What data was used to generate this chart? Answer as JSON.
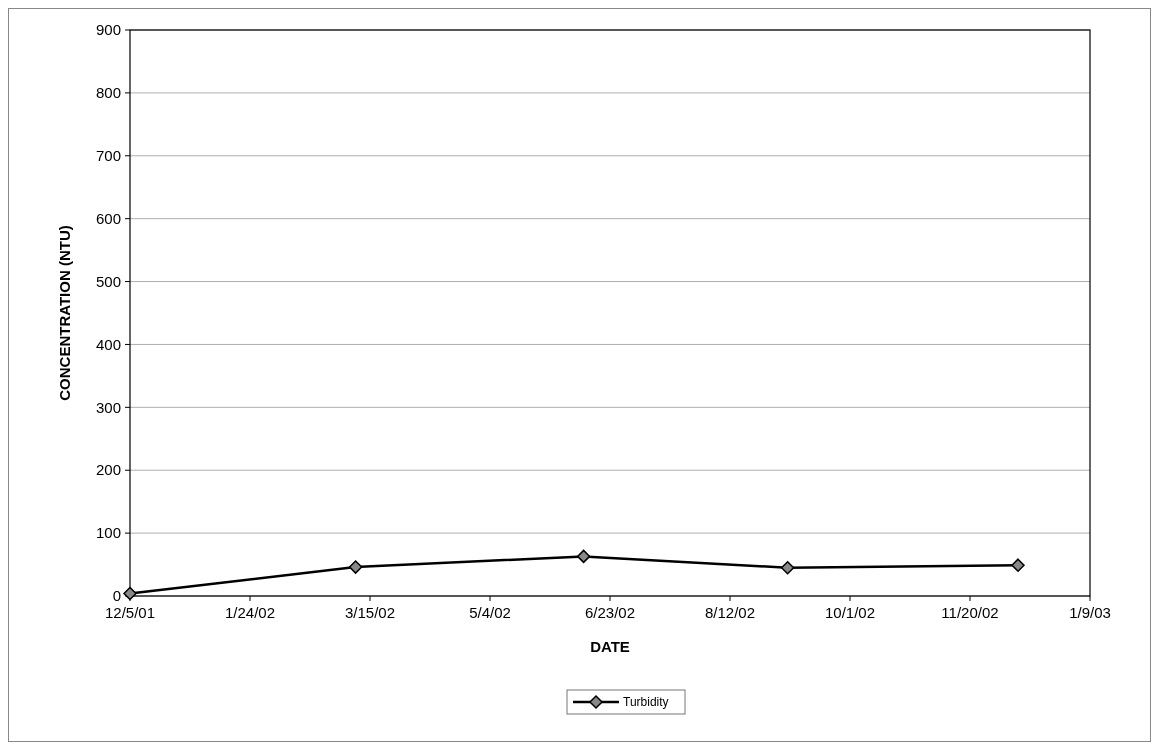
{
  "chart_data": {
    "type": "line",
    "xlabel": "DATE",
    "ylabel": "CONCENTRATION (NTU)",
    "x": [
      "2001-12-05",
      "2002-03-09",
      "2002-06-12",
      "2002-09-05",
      "2002-12-10"
    ],
    "series": [
      {
        "name": "Turbidity",
        "color": "#000000",
        "values": [
          4,
          46,
          63,
          45,
          49
        ]
      }
    ],
    "xlim": [
      "2001-12-05",
      "2003-01-09"
    ],
    "xticks": [
      {
        "value": "2001-12-05",
        "label": "12/5/01"
      },
      {
        "value": "2002-01-24",
        "label": "1/24/02"
      },
      {
        "value": "2002-03-15",
        "label": "3/15/02"
      },
      {
        "value": "2002-05-04",
        "label": "5/4/02"
      },
      {
        "value": "2002-06-23",
        "label": "6/23/02"
      },
      {
        "value": "2002-08-12",
        "label": "8/12/02"
      },
      {
        "value": "2002-10-01",
        "label": "10/1/02"
      },
      {
        "value": "2002-11-20",
        "label": "11/20/02"
      },
      {
        "value": "2003-01-09",
        "label": "1/9/03"
      }
    ],
    "ylim": [
      0,
      900
    ],
    "yticks": [
      0,
      100,
      200,
      300,
      400,
      500,
      600,
      700,
      800,
      900
    ],
    "grid": "y",
    "legend": "bottom",
    "marker": "diamond",
    "line_style": "solid"
  }
}
